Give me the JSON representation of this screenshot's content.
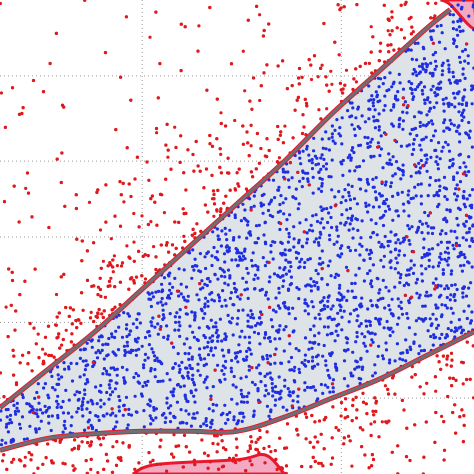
{
  "chart_data": {
    "type": "scatter",
    "title": "",
    "xlabel": "",
    "ylabel": "",
    "grid": true,
    "grid_style": "dotted",
    "xticks": [
      0.3,
      0.72
    ],
    "yticks": [
      0.16,
      0.32,
      0.5,
      0.66,
      0.84
    ],
    "xlim": [
      0,
      1
    ],
    "ylim": [
      0,
      1
    ],
    "regions": [
      {
        "id": "inner-band",
        "fill": "#dde3e7",
        "edge": "#6b7075",
        "upper_boundary": [
          [
            0.0,
            0.14
          ],
          [
            0.1,
            0.22
          ],
          [
            0.2,
            0.3
          ],
          [
            0.3,
            0.39
          ],
          [
            0.4,
            0.48
          ],
          [
            0.5,
            0.57
          ],
          [
            0.6,
            0.66
          ],
          [
            0.7,
            0.76
          ],
          [
            0.8,
            0.85
          ],
          [
            0.9,
            0.94
          ],
          [
            0.95,
            0.98
          ]
        ],
        "lower_boundary": [
          [
            0.0,
            0.05
          ],
          [
            0.1,
            0.075
          ],
          [
            0.2,
            0.085
          ],
          [
            0.3,
            0.09
          ],
          [
            0.4,
            0.09
          ],
          [
            0.5,
            0.09
          ],
          [
            0.6,
            0.12
          ],
          [
            0.7,
            0.16
          ],
          [
            0.8,
            0.2
          ],
          [
            0.9,
            0.25
          ],
          [
            1.0,
            0.3
          ]
        ]
      },
      {
        "id": "outer-boundary-top-right",
        "fill": "#f4a9c2",
        "edge": "#e8192c",
        "points": [
          [
            0.93,
            1.0
          ],
          [
            0.95,
            0.99
          ],
          [
            1.0,
            0.94
          ],
          [
            1.0,
            1.0
          ]
        ]
      },
      {
        "id": "outer-boundary-bottom",
        "fill": "#f4a9c2",
        "edge": "#e8192c",
        "points": [
          [
            0.28,
            0.0
          ],
          [
            0.33,
            0.02
          ],
          [
            0.5,
            0.03
          ],
          [
            0.56,
            0.04
          ],
          [
            0.6,
            0.0
          ]
        ]
      }
    ],
    "series": [
      {
        "color": "#1f2ee0",
        "count": 2400,
        "placement": "inside-band"
      },
      {
        "color": "#e0191c",
        "count": 1400,
        "placement": "outside-band"
      },
      {
        "color": "#e0191c",
        "count": 60,
        "placement": "inside-band"
      }
    ]
  }
}
